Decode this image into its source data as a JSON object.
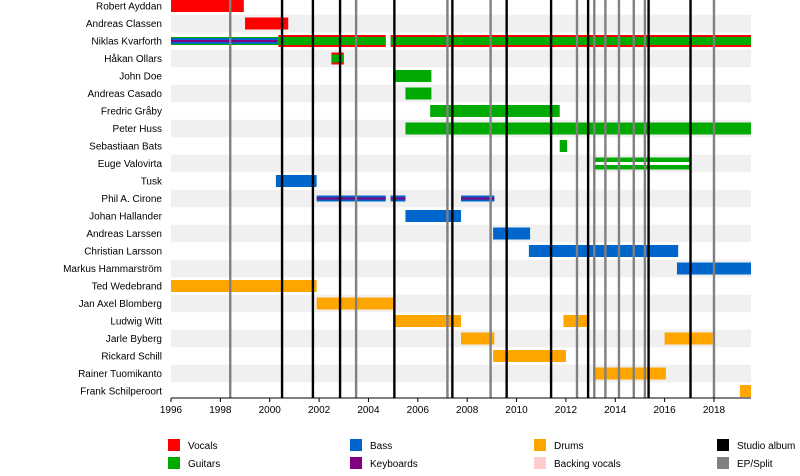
{
  "chart_data": {
    "type": "timeline",
    "title": "",
    "xlim": [
      1996,
      2019.5
    ],
    "x_ticks": [
      1996,
      1998,
      2000,
      2002,
      2004,
      2006,
      2008,
      2010,
      2012,
      2014,
      2016,
      2018
    ],
    "members": [
      {
        "name": "Robert Ayddan",
        "bars": [
          {
            "role": "Vocals",
            "start": 1996.0,
            "end": 1998.95
          }
        ]
      },
      {
        "name": "Andreas Classen",
        "bars": [
          {
            "role": "Vocals",
            "start": 1999.0,
            "end": 2000.75
          }
        ]
      },
      {
        "name": "Niklas Kvarforth",
        "bars": [
          {
            "role": "Vocals",
            "start": 2000.35,
            "end": 2004.7
          },
          {
            "role": "Vocals",
            "start": 2004.9,
            "end": 2019.5
          },
          {
            "role": "Guitars",
            "start": 1996.0,
            "end": 2000.8
          },
          {
            "role": "Bass",
            "start": 1996.0,
            "end": 2000.3
          },
          {
            "role": "Keyboards",
            "start": 1996.0,
            "end": 2000.3
          },
          {
            "role": "Guitars",
            "start": 2000.35,
            "end": 2004.7
          },
          {
            "role": "Guitars",
            "start": 2004.9,
            "end": 2019.5
          }
        ]
      },
      {
        "name": "Håkan Ollars",
        "bars": [
          {
            "role": "Vocals",
            "start": 2002.5,
            "end": 2003.0
          },
          {
            "role": "Guitars",
            "start": 2002.5,
            "end": 2003.0
          }
        ]
      },
      {
        "name": "John Doe",
        "bars": [
          {
            "role": "Guitars",
            "start": 2005.0,
            "end": 2006.55
          }
        ]
      },
      {
        "name": "Andreas Casado",
        "bars": [
          {
            "role": "Guitars",
            "start": 2005.5,
            "end": 2006.55
          }
        ]
      },
      {
        "name": "Fredric Gråby",
        "bars": [
          {
            "role": "Guitars",
            "start": 2006.5,
            "end": 2011.75
          }
        ]
      },
      {
        "name": "Peter Huss",
        "bars": [
          {
            "role": "Guitars",
            "start": 2005.5,
            "end": 2019.5
          }
        ]
      },
      {
        "name": "Sebastiaan Bats",
        "bars": [
          {
            "role": "Guitars",
            "start": 2011.75,
            "end": 2012.05
          }
        ]
      },
      {
        "name": "Euge Valovirta",
        "bars": [
          {
            "role": "Guitars",
            "start": 2013.1,
            "end": 2017.05
          }
        ]
      },
      {
        "name": "Tusk",
        "bars": [
          {
            "role": "Bass",
            "start": 2000.25,
            "end": 2001.9
          }
        ]
      },
      {
        "name": "Phil A. Cirone",
        "bars": [
          {
            "role": "Bass",
            "start": 2001.9,
            "end": 2004.7
          },
          {
            "role": "Keyboards",
            "start": 2001.9,
            "end": 2004.7
          },
          {
            "role": "Bass",
            "start": 2004.9,
            "end": 2005.5
          },
          {
            "role": "Keyboards",
            "start": 2004.9,
            "end": 2005.5
          },
          {
            "role": "Bass",
            "start": 2007.75,
            "end": 2009.1
          },
          {
            "role": "Keyboards",
            "start": 2007.75,
            "end": 2009.1
          }
        ]
      },
      {
        "name": "Johan Hallander",
        "bars": [
          {
            "role": "Bass",
            "start": 2005.5,
            "end": 2007.75
          }
        ]
      },
      {
        "name": "Andreas Larssen",
        "bars": [
          {
            "role": "Bass",
            "start": 2009.05,
            "end": 2010.55
          }
        ]
      },
      {
        "name": "Christian Larsson",
        "bars": [
          {
            "role": "Bass",
            "start": 2010.5,
            "end": 2016.55
          }
        ]
      },
      {
        "name": "Markus Hammarström",
        "bars": [
          {
            "role": "Bass",
            "start": 2016.5,
            "end": 2019.5
          }
        ]
      },
      {
        "name": "Ted Wedebrand",
        "bars": [
          {
            "role": "Drums",
            "start": 1996.0,
            "end": 2001.9
          }
        ]
      },
      {
        "name": "Jan Axel Blomberg",
        "bars": [
          {
            "role": "Drums",
            "start": 2001.9,
            "end": 2005.0
          }
        ]
      },
      {
        "name": "Ludwig Witt",
        "bars": [
          {
            "role": "Drums",
            "start": 2005.0,
            "end": 2007.75
          },
          {
            "role": "Drums",
            "start": 2011.9,
            "end": 2012.95
          }
        ]
      },
      {
        "name": "Jarle Byberg",
        "bars": [
          {
            "role": "Drums",
            "start": 2007.75,
            "end": 2009.1
          },
          {
            "role": "Drums",
            "start": 2016.0,
            "end": 2017.95
          }
        ]
      },
      {
        "name": "Rickard Schill",
        "bars": [
          {
            "role": "Drums",
            "start": 2009.05,
            "end": 2012.0
          }
        ]
      },
      {
        "name": "Rainer Tuomikanto",
        "bars": [
          {
            "role": "Drums",
            "start": 2013.1,
            "end": 2016.05
          }
        ]
      },
      {
        "name": "Frank Schilperoort",
        "bars": [
          {
            "role": "Drums",
            "start": 2019.05,
            "end": 2019.5
          }
        ]
      }
    ],
    "studio_albums": [
      2000.5,
      2001.75,
      2002.85,
      2005.05,
      2007.4,
      2009.6,
      2011.4,
      2012.9,
      2015.35,
      2017.05
    ],
    "eps_splits": [
      1998.4,
      2003.5,
      2007.2,
      2008.95,
      2012.45,
      2013.15,
      2013.6,
      2014.15,
      2014.75,
      2015.2,
      2018.0
    ],
    "legend": [
      {
        "role": "Vocals",
        "label": "Vocals",
        "color": "#ff0000"
      },
      {
        "role": "Guitars",
        "label": "Guitars",
        "color": "#00aa00"
      },
      {
        "role": "Bass",
        "label": "Bass",
        "color": "#0066cc"
      },
      {
        "role": "Keyboards",
        "label": "Keyboards",
        "color": "#800080"
      },
      {
        "role": "Drums",
        "label": "Drums",
        "color": "#ffa500"
      },
      {
        "role": "Backing vocals",
        "label": "Backing vocals",
        "color": "#ffcccc"
      },
      {
        "role": "Studio album",
        "label": "Studio album",
        "color": "#000000"
      },
      {
        "role": "EP/Split",
        "label": "EP/Split",
        "color": "#808080"
      }
    ]
  }
}
